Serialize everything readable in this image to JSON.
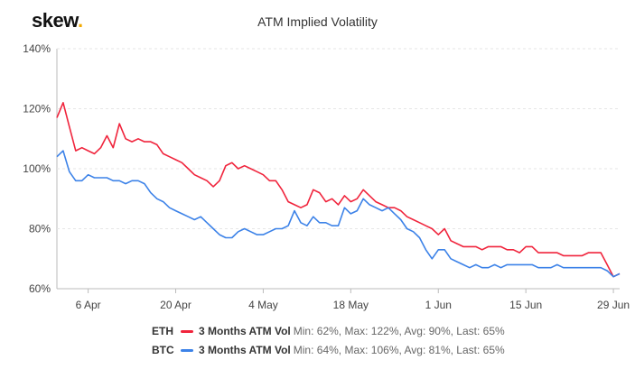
{
  "logo": {
    "text": "skew",
    "dot": "."
  },
  "chart_data": {
    "type": "line",
    "title": "ATM Implied Volatility",
    "x_ticks": [
      "6 Apr",
      "20 Apr",
      "4 May",
      "18 May",
      "1 Jun",
      "15 Jun",
      "29 Jun"
    ],
    "y_ticks": [
      "60%",
      "80%",
      "100%",
      "120%",
      "140%"
    ],
    "ylim": [
      60,
      140
    ],
    "xlim": [
      "2020-04-01",
      "2020-06-30"
    ],
    "grid": true,
    "series": [
      {
        "symbol": "ETH",
        "name": "3 Months ATM Vol",
        "stats": "Min: 62%, Max: 122%, Avg: 90%, Last: 65%",
        "color": "#f0243c",
        "x": [
          "2020-04-01",
          "2020-04-02",
          "2020-04-03",
          "2020-04-04",
          "2020-04-05",
          "2020-04-06",
          "2020-04-07",
          "2020-04-08",
          "2020-04-09",
          "2020-04-10",
          "2020-04-11",
          "2020-04-12",
          "2020-04-13",
          "2020-04-14",
          "2020-04-15",
          "2020-04-16",
          "2020-04-17",
          "2020-04-18",
          "2020-04-19",
          "2020-04-20",
          "2020-04-21",
          "2020-04-22",
          "2020-04-23",
          "2020-04-24",
          "2020-04-25",
          "2020-04-26",
          "2020-04-27",
          "2020-04-28",
          "2020-04-29",
          "2020-04-30",
          "2020-05-01",
          "2020-05-02",
          "2020-05-03",
          "2020-05-04",
          "2020-05-05",
          "2020-05-06",
          "2020-05-07",
          "2020-05-08",
          "2020-05-09",
          "2020-05-10",
          "2020-05-11",
          "2020-05-12",
          "2020-05-13",
          "2020-05-14",
          "2020-05-15",
          "2020-05-16",
          "2020-05-17",
          "2020-05-18",
          "2020-05-19",
          "2020-05-20",
          "2020-05-21",
          "2020-05-22",
          "2020-05-23",
          "2020-05-24",
          "2020-05-25",
          "2020-05-26",
          "2020-05-27",
          "2020-05-28",
          "2020-05-29",
          "2020-05-30",
          "2020-05-31",
          "2020-06-01",
          "2020-06-02",
          "2020-06-03",
          "2020-06-04",
          "2020-06-05",
          "2020-06-06",
          "2020-06-07",
          "2020-06-08",
          "2020-06-09",
          "2020-06-10",
          "2020-06-11",
          "2020-06-12",
          "2020-06-13",
          "2020-06-14",
          "2020-06-15",
          "2020-06-16",
          "2020-06-17",
          "2020-06-18",
          "2020-06-19",
          "2020-06-20",
          "2020-06-21",
          "2020-06-22",
          "2020-06-23",
          "2020-06-24",
          "2020-06-25",
          "2020-06-26",
          "2020-06-27",
          "2020-06-28",
          "2020-06-29",
          "2020-06-30"
        ],
        "values": [
          117,
          122,
          114,
          106,
          107,
          106,
          105,
          107,
          111,
          107,
          115,
          110,
          109,
          110,
          109,
          109,
          108,
          105,
          104,
          103,
          102,
          100,
          98,
          97,
          96,
          94,
          96,
          101,
          102,
          100,
          101,
          100,
          99,
          98,
          96,
          96,
          93,
          89,
          88,
          87,
          88,
          93,
          92,
          89,
          90,
          88,
          91,
          89,
          90,
          93,
          91,
          89,
          88,
          87,
          87,
          86,
          84,
          83,
          82,
          81,
          80,
          78,
          80,
          76,
          75,
          74,
          74,
          74,
          73,
          74,
          74,
          74,
          73,
          73,
          72,
          74,
          74,
          72,
          72,
          72,
          72,
          71,
          71,
          71,
          71,
          72,
          72,
          72,
          68,
          64,
          65
        ]
      },
      {
        "symbol": "BTC",
        "name": "3 Months ATM Vol",
        "stats": "Min: 64%, Max: 106%, Avg: 81%, Last: 65%",
        "color": "#3c82e8",
        "x": [
          "2020-04-01",
          "2020-04-02",
          "2020-04-03",
          "2020-04-04",
          "2020-04-05",
          "2020-04-06",
          "2020-04-07",
          "2020-04-08",
          "2020-04-09",
          "2020-04-10",
          "2020-04-11",
          "2020-04-12",
          "2020-04-13",
          "2020-04-14",
          "2020-04-15",
          "2020-04-16",
          "2020-04-17",
          "2020-04-18",
          "2020-04-19",
          "2020-04-20",
          "2020-04-21",
          "2020-04-22",
          "2020-04-23",
          "2020-04-24",
          "2020-04-25",
          "2020-04-26",
          "2020-04-27",
          "2020-04-28",
          "2020-04-29",
          "2020-04-30",
          "2020-05-01",
          "2020-05-02",
          "2020-05-03",
          "2020-05-04",
          "2020-05-05",
          "2020-05-06",
          "2020-05-07",
          "2020-05-08",
          "2020-05-09",
          "2020-05-10",
          "2020-05-11",
          "2020-05-12",
          "2020-05-13",
          "2020-05-14",
          "2020-05-15",
          "2020-05-16",
          "2020-05-17",
          "2020-05-18",
          "2020-05-19",
          "2020-05-20",
          "2020-05-21",
          "2020-05-22",
          "2020-05-23",
          "2020-05-24",
          "2020-05-25",
          "2020-05-26",
          "2020-05-27",
          "2020-05-28",
          "2020-05-29",
          "2020-05-30",
          "2020-05-31",
          "2020-06-01",
          "2020-06-02",
          "2020-06-03",
          "2020-06-04",
          "2020-06-05",
          "2020-06-06",
          "2020-06-07",
          "2020-06-08",
          "2020-06-09",
          "2020-06-10",
          "2020-06-11",
          "2020-06-12",
          "2020-06-13",
          "2020-06-14",
          "2020-06-15",
          "2020-06-16",
          "2020-06-17",
          "2020-06-18",
          "2020-06-19",
          "2020-06-20",
          "2020-06-21",
          "2020-06-22",
          "2020-06-23",
          "2020-06-24",
          "2020-06-25",
          "2020-06-26",
          "2020-06-27",
          "2020-06-28",
          "2020-06-29",
          "2020-06-30"
        ],
        "values": [
          104,
          106,
          99,
          96,
          96,
          98,
          97,
          97,
          97,
          96,
          96,
          95,
          96,
          96,
          95,
          92,
          90,
          89,
          87,
          86,
          85,
          84,
          83,
          84,
          82,
          80,
          78,
          77,
          77,
          79,
          80,
          79,
          78,
          78,
          79,
          80,
          80,
          81,
          86,
          82,
          81,
          84,
          82,
          82,
          81,
          81,
          87,
          85,
          86,
          90,
          88,
          87,
          86,
          87,
          85,
          83,
          80,
          79,
          77,
          73,
          70,
          73,
          73,
          70,
          69,
          68,
          67,
          68,
          67,
          67,
          68,
          67,
          68,
          68,
          68,
          68,
          68,
          67,
          67,
          67,
          68,
          67,
          67,
          67,
          67,
          67,
          67,
          67,
          66,
          64,
          65
        ]
      }
    ]
  }
}
